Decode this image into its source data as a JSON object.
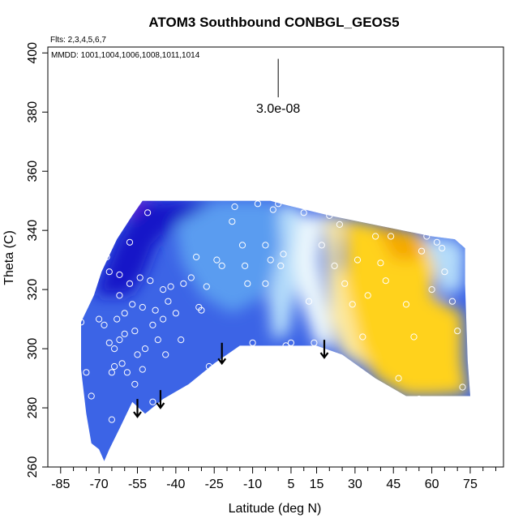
{
  "chart_data": {
    "type": "heatmap",
    "title": "ATOM3 Southbound CONBGL_GEOS5",
    "annotations": {
      "flights": "Flts: 2,3,4,5,6,7",
      "dates": "MMDD: 1001,1004,1006,1008,1011,1014",
      "scale_label": "3.0e-08"
    },
    "xlabel": "Latitude (deg N)",
    "ylabel": "Theta (C)",
    "xlim": [
      -90,
      88
    ],
    "ylim": [
      260,
      402
    ],
    "x_ticks": [
      -85,
      -70,
      -55,
      -40,
      -25,
      -10,
      5,
      15,
      30,
      45,
      60,
      75
    ],
    "x_minor_ticks": [
      -80,
      -75,
      -65,
      -60,
      -50,
      -45,
      -35,
      -30,
      -20,
      -15,
      -5,
      0,
      10,
      20,
      25,
      35,
      40,
      50,
      55,
      65,
      70,
      80,
      85
    ],
    "y_ticks": [
      260,
      280,
      300,
      320,
      340,
      360,
      380,
      400
    ],
    "grid": false,
    "colors": {
      "purple": "#7e22d8",
      "dark_blue": "#1414c8",
      "blue": "#3c64e6",
      "mid_blue": "#5a9cf0",
      "light_blue": "#b4dcfa",
      "pale": "#eaf6fc",
      "light_yellow": "#fce9a0",
      "yellow": "#ffd21e",
      "orange": "#f5a800"
    },
    "field_outline": [
      [
        -77,
        293
      ],
      [
        -77,
        309
      ],
      [
        -72,
        318
      ],
      [
        -69,
        326
      ],
      [
        -63,
        337
      ],
      [
        -57,
        345
      ],
      [
        -53,
        350
      ],
      [
        -30,
        350
      ],
      [
        -3,
        350
      ],
      [
        1,
        349
      ],
      [
        20,
        345
      ],
      [
        60,
        338
      ],
      [
        69,
        337
      ],
      [
        73,
        334
      ],
      [
        73,
        322
      ],
      [
        74,
        296
      ],
      [
        75,
        284
      ],
      [
        62,
        284
      ],
      [
        50,
        284
      ],
      [
        38,
        290
      ],
      [
        25,
        298
      ],
      [
        15,
        301
      ],
      [
        5,
        301
      ],
      [
        -15,
        301
      ],
      [
        -25,
        295
      ],
      [
        -35,
        288
      ],
      [
        -45,
        283
      ],
      [
        -52,
        278
      ],
      [
        -57,
        282
      ],
      [
        -62,
        273
      ],
      [
        -66,
        266
      ],
      [
        -68,
        262
      ],
      [
        -70,
        266
      ],
      [
        -73,
        268
      ],
      [
        -75,
        278
      ]
    ],
    "field_regions": [
      {
        "level": "purple",
        "points": [
          [
            -60,
            345
          ],
          [
            -56,
            351
          ],
          [
            -50,
            351
          ],
          [
            -52,
            346
          ]
        ]
      },
      {
        "level": "dark_blue",
        "points": [
          [
            -72,
            318
          ],
          [
            -70,
            322
          ],
          [
            -63,
            337
          ],
          [
            -57,
            345
          ],
          [
            -53,
            350
          ],
          [
            -25,
            350
          ],
          [
            -30,
            345
          ],
          [
            -40,
            342
          ],
          [
            -48,
            335
          ],
          [
            -52,
            326
          ],
          [
            -58,
            318
          ],
          [
            -65,
            318
          ]
        ]
      },
      {
        "level": "mid_blue",
        "points": [
          [
            -40,
            342
          ],
          [
            -25,
            350
          ],
          [
            -3,
            350
          ],
          [
            1,
            345
          ],
          [
            0,
            330
          ],
          [
            -5,
            318
          ],
          [
            -18,
            312
          ],
          [
            -30,
            318
          ],
          [
            -38,
            330
          ]
        ]
      },
      {
        "level": "light_blue",
        "points": [
          [
            0,
            349
          ],
          [
            8,
            348
          ],
          [
            12,
            340
          ],
          [
            8,
            325
          ],
          [
            4,
            305
          ],
          [
            -2,
            303
          ],
          [
            -4,
            318
          ],
          [
            1,
            334
          ]
        ]
      },
      {
        "level": "pale",
        "points": [
          [
            8,
            345
          ],
          [
            18,
            345
          ],
          [
            16,
            330
          ],
          [
            22,
            300
          ],
          [
            15,
            301
          ],
          [
            8,
            318
          ],
          [
            6,
            330
          ]
        ]
      },
      {
        "level": "light_yellow",
        "points": [
          [
            18,
            345
          ],
          [
            26,
            344
          ],
          [
            24,
            330
          ],
          [
            30,
            312
          ],
          [
            38,
            292
          ],
          [
            25,
            298
          ],
          [
            20,
            310
          ]
        ]
      },
      {
        "level": "yellow",
        "points": [
          [
            26,
            344
          ],
          [
            55,
            339
          ],
          [
            62,
            330
          ],
          [
            60,
            318
          ],
          [
            72,
            312
          ],
          [
            72,
            296
          ],
          [
            74,
            285
          ],
          [
            62,
            284
          ],
          [
            50,
            284
          ],
          [
            38,
            290
          ],
          [
            32,
            300
          ],
          [
            26,
            322
          ]
        ]
      },
      {
        "level": "orange",
        "points": [
          [
            38,
            342
          ],
          [
            52,
            338
          ],
          [
            58,
            336
          ],
          [
            55,
            330
          ],
          [
            45,
            330
          ]
        ]
      },
      {
        "level": "light_blue",
        "points": [
          [
            56,
            338
          ],
          [
            69,
            337
          ],
          [
            73,
            334
          ],
          [
            72,
            320
          ],
          [
            64,
            318
          ],
          [
            60,
            330
          ]
        ]
      }
    ],
    "observations": [
      [
        -77,
        309
      ],
      [
        -75,
        292
      ],
      [
        -73,
        284
      ],
      [
        -70,
        310
      ],
      [
        -68,
        308
      ],
      [
        -67,
        331
      ],
      [
        -66,
        326
      ],
      [
        -66,
        302
      ],
      [
        -65,
        292
      ],
      [
        -65,
        276
      ],
      [
        -64,
        300
      ],
      [
        -64,
        294
      ],
      [
        -63,
        310
      ],
      [
        -62,
        325
      ],
      [
        -62,
        318
      ],
      [
        -62,
        303
      ],
      [
        -61,
        295
      ],
      [
        -60,
        312
      ],
      [
        -60,
        305
      ],
      [
        -59,
        292
      ],
      [
        -58,
        336
      ],
      [
        -58,
        322
      ],
      [
        -57,
        315
      ],
      [
        -56,
        306
      ],
      [
        -56,
        288
      ],
      [
        -55,
        298
      ],
      [
        -54,
        324
      ],
      [
        -53,
        314
      ],
      [
        -53,
        293
      ],
      [
        -52,
        300
      ],
      [
        -51,
        346
      ],
      [
        -50,
        323
      ],
      [
        -49,
        308
      ],
      [
        -49,
        282
      ],
      [
        -48,
        313
      ],
      [
        -47,
        303
      ],
      [
        -45,
        320
      ],
      [
        -45,
        310
      ],
      [
        -44,
        298
      ],
      [
        -43,
        316
      ],
      [
        -42,
        321
      ],
      [
        -40,
        312
      ],
      [
        -38,
        303
      ],
      [
        -37,
        322
      ],
      [
        -34,
        324
      ],
      [
        -32,
        331
      ],
      [
        -31,
        314
      ],
      [
        -30,
        313
      ],
      [
        -28,
        321
      ],
      [
        -27,
        294
      ],
      [
        -26,
        293
      ],
      [
        -24,
        330
      ],
      [
        -22,
        328
      ],
      [
        -18,
        343
      ],
      [
        -17,
        348
      ],
      [
        -14,
        335
      ],
      [
        -13,
        328
      ],
      [
        -12,
        322
      ],
      [
        -10,
        302
      ],
      [
        -8,
        349
      ],
      [
        -5,
        335
      ],
      [
        -5,
        322
      ],
      [
        -3,
        330
      ],
      [
        -2,
        347
      ],
      [
        0,
        349
      ],
      [
        1,
        328
      ],
      [
        2,
        332
      ],
      [
        3,
        301
      ],
      [
        5,
        302
      ],
      [
        10,
        346
      ],
      [
        12,
        316
      ],
      [
        14,
        302
      ],
      [
        15,
        298
      ],
      [
        17,
        335
      ],
      [
        20,
        345
      ],
      [
        22,
        328
      ],
      [
        24,
        342
      ],
      [
        26,
        322
      ],
      [
        29,
        315
      ],
      [
        31,
        330
      ],
      [
        33,
        304
      ],
      [
        35,
        318
      ],
      [
        38,
        338
      ],
      [
        40,
        329
      ],
      [
        42,
        323
      ],
      [
        44,
        338
      ],
      [
        47,
        290
      ],
      [
        50,
        315
      ],
      [
        53,
        304
      ],
      [
        55,
        283
      ],
      [
        56,
        333
      ],
      [
        58,
        338
      ],
      [
        60,
        320
      ],
      [
        62,
        336
      ],
      [
        64,
        334
      ],
      [
        65,
        326
      ],
      [
        68,
        316
      ],
      [
        70,
        306
      ],
      [
        72,
        287
      ]
    ],
    "arrows": [
      {
        "x": -55,
        "y_top": 283,
        "y_bottom": 277
      },
      {
        "x": -46,
        "y_top": 286,
        "y_bottom": 280
      },
      {
        "x": -22,
        "y_top": 302,
        "y_bottom": 295
      },
      {
        "x": 18,
        "y_top": 303,
        "y_bottom": 297
      }
    ],
    "scale_bar": {
      "x": 0,
      "y_top": 398,
      "y_bottom": 385
    }
  }
}
